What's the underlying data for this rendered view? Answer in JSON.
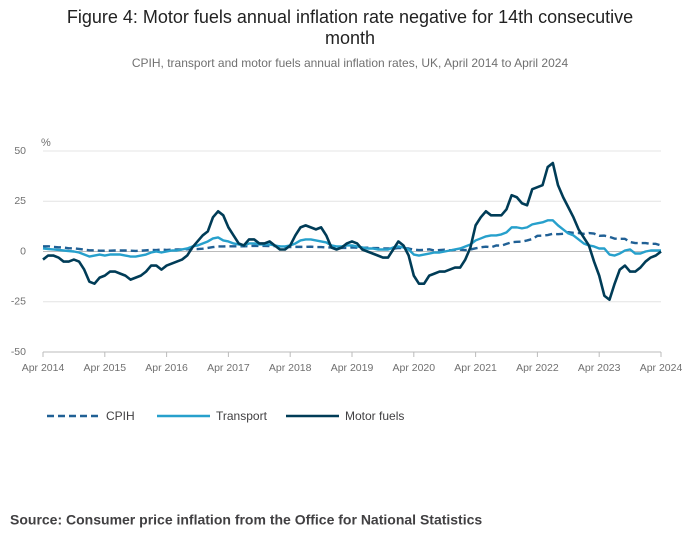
{
  "chart_data": {
    "type": "line",
    "title_lines": [
      "Figure 4: Motor fuels annual inflation rate negative for 14th consecutive",
      "month"
    ],
    "subtitle": "CPIH, transport and motor fuels annual inflation rates, UK, April 2014 to April 2024",
    "y_label": "%",
    "source": "Source: Consumer price inflation from the Office for National Statistics",
    "x": [
      "Apr 2014",
      "May 2014",
      "Jun 2014",
      "Jul 2014",
      "Aug 2014",
      "Sep 2014",
      "Oct 2014",
      "Nov 2014",
      "Dec 2014",
      "Jan 2015",
      "Feb 2015",
      "Mar 2015",
      "Apr 2015",
      "May 2015",
      "Jun 2015",
      "Jul 2015",
      "Aug 2015",
      "Sep 2015",
      "Oct 2015",
      "Nov 2015",
      "Dec 2015",
      "Jan 2016",
      "Feb 2016",
      "Mar 2016",
      "Apr 2016",
      "May 2016",
      "Jun 2016",
      "Jul 2016",
      "Aug 2016",
      "Sep 2016",
      "Oct 2016",
      "Nov 2016",
      "Dec 2016",
      "Jan 2017",
      "Feb 2017",
      "Mar 2017",
      "Apr 2017",
      "May 2017",
      "Jun 2017",
      "Jul 2017",
      "Aug 2017",
      "Sep 2017",
      "Oct 2017",
      "Nov 2017",
      "Dec 2017",
      "Jan 2018",
      "Feb 2018",
      "Mar 2018",
      "Apr 2018",
      "May 2018",
      "Jun 2018",
      "Jul 2018",
      "Aug 2018",
      "Sep 2018",
      "Oct 2018",
      "Nov 2018",
      "Dec 2018",
      "Jan 2019",
      "Feb 2019",
      "Mar 2019",
      "Apr 2019",
      "May 2019",
      "Jun 2019",
      "Jul 2019",
      "Aug 2019",
      "Sep 2019",
      "Oct 2019",
      "Nov 2019",
      "Dec 2019",
      "Jan 2020",
      "Feb 2020",
      "Mar 2020",
      "Apr 2020",
      "May 2020",
      "Jun 2020",
      "Jul 2020",
      "Aug 2020",
      "Sep 2020",
      "Oct 2020",
      "Nov 2020",
      "Dec 2020",
      "Jan 2021",
      "Feb 2021",
      "Mar 2021",
      "Apr 2021",
      "May 2021",
      "Jun 2021",
      "Jul 2021",
      "Aug 2021",
      "Sep 2021",
      "Oct 2021",
      "Nov 2021",
      "Dec 2021",
      "Jan 2022",
      "Feb 2022",
      "Mar 2022",
      "Apr 2022",
      "May 2022",
      "Jun 2022",
      "Jul 2022",
      "Aug 2022",
      "Sep 2022",
      "Oct 2022",
      "Nov 2022",
      "Dec 2022",
      "Jan 2023",
      "Feb 2023",
      "Mar 2023",
      "Apr 2023",
      "May 2023",
      "Jun 2023",
      "Jul 2023",
      "Aug 2023",
      "Sep 2023",
      "Oct 2023",
      "Nov 2023",
      "Dec 2023",
      "Jan 2024",
      "Feb 2024",
      "Mar 2024",
      "Apr 2024"
    ],
    "xticks": [
      "Apr 2014",
      "Apr 2015",
      "Apr 2016",
      "Apr 2017",
      "Apr 2018",
      "Apr 2019",
      "Apr 2020",
      "Apr 2021",
      "Apr 2022",
      "Apr 2023",
      "Apr 2024"
    ],
    "ylim": [
      -50,
      50
    ],
    "yticks": [
      -50,
      -25,
      0,
      25,
      50
    ],
    "grid": true,
    "series": [
      {
        "name": "CPIH",
        "color": "#206095",
        "dashed": true,
        "values": [
          2.6,
          2.6,
          2.3,
          2.1,
          2.0,
          1.6,
          1.6,
          1.3,
          0.9,
          0.6,
          0.6,
          0.4,
          0.4,
          0.4,
          0.5,
          0.5,
          0.5,
          0.4,
          0.3,
          0.4,
          0.6,
          0.8,
          0.7,
          1.0,
          0.8,
          0.9,
          1.0,
          1.0,
          1.1,
          1.2,
          1.2,
          1.4,
          1.8,
          2.2,
          2.5,
          2.5,
          2.6,
          2.6,
          2.6,
          2.6,
          2.7,
          2.8,
          2.8,
          2.8,
          2.7,
          2.7,
          2.5,
          2.3,
          2.2,
          2.3,
          2.3,
          2.3,
          2.4,
          2.2,
          2.2,
          2.0,
          2.0,
          1.8,
          1.8,
          1.8,
          2.0,
          1.9,
          1.9,
          1.9,
          1.7,
          1.7,
          1.5,
          1.5,
          1.4,
          1.8,
          1.7,
          1.5,
          0.9,
          0.7,
          0.8,
          1.1,
          0.5,
          0.7,
          0.9,
          0.6,
          0.8,
          0.9,
          0.7,
          1.0,
          1.6,
          2.1,
          2.4,
          2.1,
          3.0,
          2.9,
          3.8,
          4.6,
          4.8,
          4.9,
          5.5,
          6.2,
          7.8,
          7.9,
          8.2,
          8.8,
          8.6,
          8.8,
          9.6,
          9.3,
          9.2,
          8.8,
          9.2,
          8.9,
          7.8,
          7.9,
          7.3,
          6.4,
          6.3,
          6.3,
          4.7,
          4.2,
          4.2,
          4.2,
          3.8,
          3.8,
          3.0
        ]
      },
      {
        "name": "Transport",
        "color": "#27a0cc",
        "dashed": false,
        "values": [
          1.5,
          1.2,
          1.0,
          0.8,
          0.5,
          0.2,
          0.0,
          -0.5,
          -1.5,
          -2.5,
          -2.0,
          -1.5,
          -2.0,
          -1.5,
          -1.5,
          -1.5,
          -2.0,
          -2.5,
          -2.5,
          -2.0,
          -1.5,
          -0.5,
          0.0,
          -0.5,
          0.0,
          0.5,
          0.5,
          1.0,
          1.5,
          2.5,
          3.0,
          4.0,
          5.0,
          6.5,
          7.0,
          5.5,
          5.0,
          4.0,
          3.5,
          3.0,
          4.0,
          4.0,
          3.5,
          3.5,
          3.5,
          3.0,
          2.5,
          2.5,
          3.0,
          4.0,
          5.5,
          6.0,
          6.0,
          5.5,
          5.0,
          4.5,
          3.0,
          2.5,
          2.5,
          3.0,
          3.0,
          2.5,
          2.0,
          1.5,
          1.5,
          1.0,
          1.0,
          1.0,
          2.0,
          2.5,
          2.0,
          1.0,
          -1.5,
          -2.0,
          -1.5,
          -1.0,
          -0.5,
          -0.5,
          0.0,
          0.5,
          1.0,
          1.5,
          2.5,
          3.5,
          5.5,
          6.5,
          7.5,
          8.0,
          8.0,
          8.5,
          9.5,
          12.0,
          12.0,
          11.5,
          12.0,
          13.5,
          14.0,
          14.5,
          15.5,
          15.5,
          13.0,
          11.0,
          9.0,
          8.0,
          6.0,
          4.0,
          3.0,
          2.5,
          1.5,
          1.5,
          -1.5,
          -2.0,
          -1.0,
          0.5,
          1.0,
          -1.0,
          -1.0,
          0.0,
          0.5,
          0.5,
          0.5
        ]
      },
      {
        "name": "Motor fuels",
        "color": "#003c57",
        "dashed": false,
        "values": [
          -4,
          -2,
          -2,
          -3,
          -5,
          -5,
          -4,
          -5,
          -9,
          -15,
          -16,
          -13,
          -12,
          -10,
          -10,
          -11,
          -12,
          -14,
          -13,
          -12,
          -10,
          -7,
          -7,
          -9,
          -7,
          -6,
          -5,
          -4,
          -2,
          2,
          5,
          8,
          10,
          17,
          20,
          18,
          12,
          8,
          4,
          3,
          6,
          6,
          4,
          4,
          5,
          3,
          1,
          1,
          3,
          8,
          12,
          13,
          12,
          11,
          12,
          8,
          2,
          1,
          2,
          4,
          5,
          4,
          1,
          0,
          -1,
          -2,
          -3,
          -3,
          1,
          5,
          3,
          -2,
          -12,
          -16,
          -16,
          -12,
          -11,
          -10,
          -10,
          -9,
          -8,
          -8,
          -4,
          2,
          13,
          17,
          20,
          18,
          18,
          18,
          21,
          28,
          27,
          24,
          23,
          31,
          32,
          33,
          42,
          44,
          33,
          27,
          22,
          17,
          11,
          7,
          3,
          -5,
          -12,
          -22,
          -24,
          -16,
          -9,
          -7,
          -10,
          -10,
          -8,
          -5,
          -3,
          -2,
          0
        ]
      }
    ]
  }
}
